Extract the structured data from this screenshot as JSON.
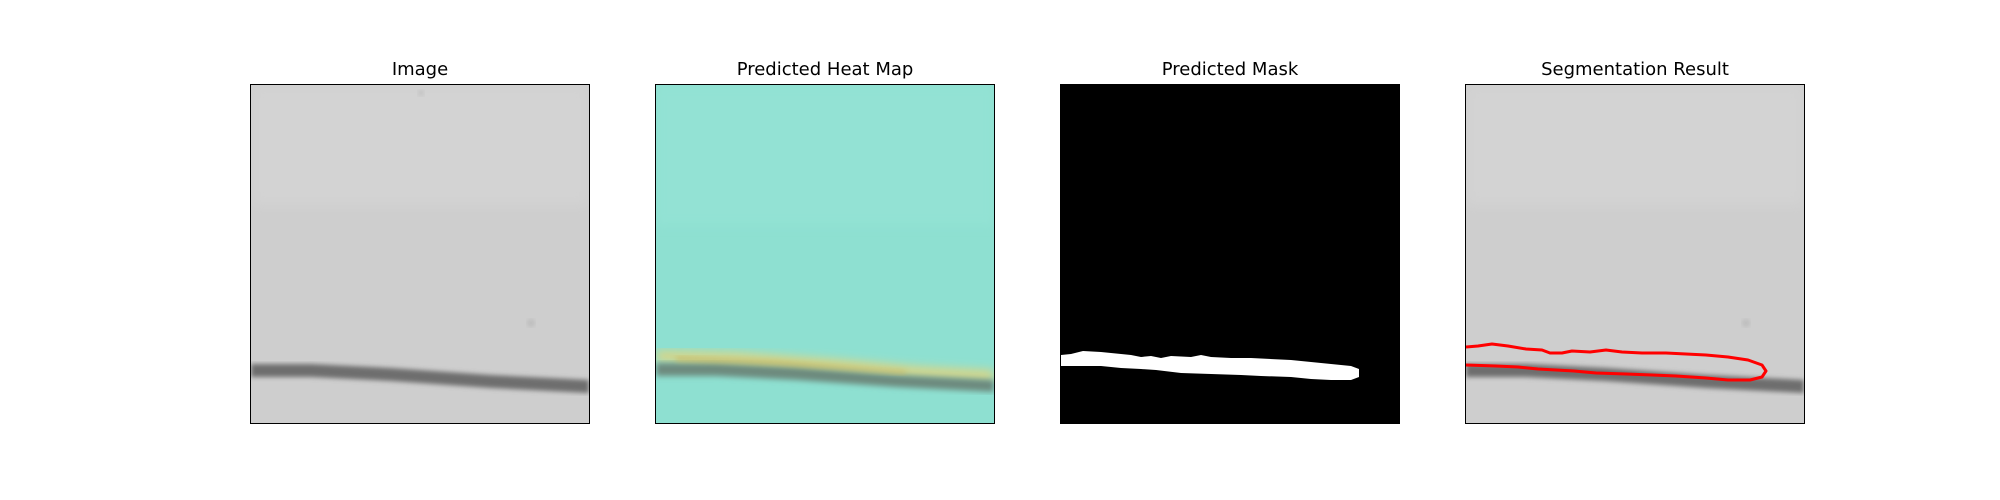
{
  "figure": {
    "panels": [
      {
        "title": "Image"
      },
      {
        "title": "Predicted Heat Map"
      },
      {
        "title": "Predicted Mask"
      },
      {
        "title": "Segmentation Result"
      }
    ]
  },
  "colors": {
    "image_background": "#cfcfcf",
    "heatmap_background": "#8fe2d3",
    "heatmap_hot": "#e2d07a",
    "mask_background": "#000000",
    "mask_foreground": "#ffffff",
    "contour": "#ff0000",
    "line_dark": "#6b6b6b"
  }
}
